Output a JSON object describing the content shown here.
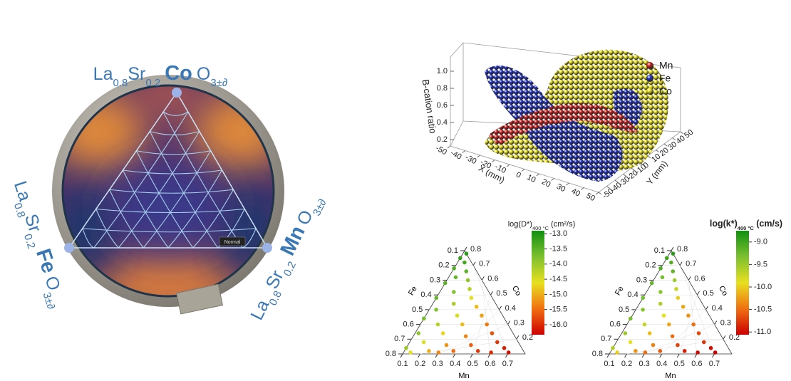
{
  "sample": {
    "compositions": [
      {
        "parts": [
          "La",
          "0.8",
          "Sr",
          "0.2",
          "Co",
          "O",
          "3±∂"
        ]
      },
      {
        "parts": [
          "La",
          "0.8",
          "Sr",
          "0.2",
          "Fe",
          "O",
          "3±∂"
        ]
      },
      {
        "parts": [
          "La",
          "0.8",
          "Sr",
          "0.2",
          "Mn",
          "O",
          "3±∂"
        ]
      }
    ],
    "tag": "Normal"
  },
  "chart_data": [
    {
      "type": "scatter3d",
      "zlabel": "B-cation ratio",
      "xlabel": "X (mm)",
      "ylabel": "Y (mm)",
      "xlim": [
        -50,
        50
      ],
      "ylim": [
        -50,
        50
      ],
      "zlim": [
        0,
        1.1
      ],
      "xticks": [
        -50,
        -40,
        -30,
        -20,
        -10,
        0,
        10,
        20,
        30,
        40,
        50
      ],
      "yticks": [
        -50,
        -40,
        -30,
        -20,
        -10,
        0,
        10,
        20,
        30,
        40,
        50
      ],
      "zticks": [
        0.2,
        0.4,
        0.6,
        0.8,
        {
          "value": 1,
          "label": "1.0"
        }
      ],
      "series": [
        {
          "name": "Mn",
          "color": "#d42020"
        },
        {
          "name": "Fe",
          "color": "#1f2fc0"
        },
        {
          "name": "Co",
          "color": "#e6e020"
        }
      ]
    },
    {
      "type": "ternary",
      "axis_labels": {
        "fe": "Fe",
        "co": "Co",
        "mn": "Mn"
      },
      "fe_ticks": [
        0.1,
        0.2,
        0.3,
        0.4,
        0.5,
        0.6,
        0.7,
        0.8
      ],
      "co_ticks": [
        0.2,
        0.3,
        0.4,
        0.5,
        0.6,
        0.7,
        0.8
      ],
      "mn_ticks": [
        0.1,
        0.2,
        0.3,
        0.4,
        0.5,
        0.6,
        0.7
      ],
      "colorbar": {
        "title": {
          "main": "log(D*)",
          "sub": "400 °C",
          "unit": " (cm²/s)"
        },
        "clim": [
          -16.33,
          -12.9
        ],
        "ticks": [
          {
            "value": -13,
            "label": "-13.0"
          },
          -13.5,
          {
            "value": -14,
            "label": "-14.0"
          },
          -14.5,
          {
            "value": -15,
            "label": "-15.0"
          },
          -15.5,
          {
            "value": -16,
            "label": "-16.0"
          }
        ],
        "colormap": [
          "#cc0000",
          "#f07010",
          "#e8e020",
          "#7cc030",
          "#109010"
        ]
      },
      "points": {
        "mn": [
          0.12,
          0.1,
          0.14,
          0.1,
          0.18,
          0.14,
          0.22,
          0.1,
          0.26,
          0.18,
          0.3,
          0.1,
          0.22,
          0.36,
          0.14,
          0.42,
          0.28,
          0.1,
          0.48,
          0.2,
          0.34,
          0.54,
          0.12,
          0.26,
          0.4,
          0.6,
          0.18,
          0.32,
          0.46,
          0.66,
          0.1,
          0.24,
          0.38,
          0.52,
          0.7,
          0.14,
          0.3,
          0.6
        ],
        "co": [
          0.78,
          0.75,
          0.72,
          0.68,
          0.66,
          0.62,
          0.6,
          0.58,
          0.54,
          0.52,
          0.48,
          0.48,
          0.44,
          0.42,
          0.4,
          0.36,
          0.36,
          0.34,
          0.3,
          0.3,
          0.3,
          0.24,
          0.24,
          0.24,
          0.22,
          0.18,
          0.18,
          0.16,
          0.16,
          0.14,
          0.14,
          0.12,
          0.12,
          0.12,
          0.11,
          0.11,
          0.11,
          0.11
        ],
        "values": [
          -13.1,
          -13.2,
          -13.3,
          -13.4,
          -13.5,
          -13.6,
          -13.9,
          -13.5,
          -14.2,
          -13.8,
          -14.6,
          -13.6,
          -14.1,
          -14.9,
          -13.8,
          -15.1,
          -14.5,
          -13.7,
          -15.4,
          -14.2,
          -14.9,
          -15.7,
          -13.9,
          -14.7,
          -15.3,
          -15.9,
          -14.5,
          -15.2,
          -15.6,
          -16.1,
          -14.0,
          -15.0,
          -15.5,
          -15.9,
          -16.2,
          -14.6,
          -15.3,
          -16.0
        ]
      }
    },
    {
      "type": "ternary",
      "axis_labels": {
        "fe": "Fe",
        "co": "Co",
        "mn": "Mn"
      },
      "fe_ticks": [
        0.1,
        0.2,
        0.3,
        0.4,
        0.5,
        0.6,
        0.7,
        0.8
      ],
      "co_ticks": [
        0.2,
        0.3,
        0.4,
        0.5,
        0.6,
        0.7,
        0.8
      ],
      "mn_ticks": [
        0.1,
        0.2,
        0.3,
        0.4,
        0.5,
        0.6,
        0.7
      ],
      "colorbar": {
        "title": {
          "main": "log(k*)",
          "sub": "400 °C",
          "unit": " (cm/s)"
        },
        "clim": [
          -11.06,
          -8.75
        ],
        "ticks": [
          {
            "value": -9,
            "label": "-9.0"
          },
          -9.5,
          {
            "value": -10,
            "label": "-10.0"
          },
          -10.5,
          {
            "value": -11,
            "label": "-11.0"
          }
        ],
        "colormap": [
          "#cc0000",
          "#f07010",
          "#e8e020",
          "#7cc030",
          "#109010"
        ]
      },
      "points": {
        "mn": [
          0.12,
          0.1,
          0.14,
          0.1,
          0.18,
          0.14,
          0.22,
          0.1,
          0.26,
          0.18,
          0.3,
          0.1,
          0.22,
          0.36,
          0.14,
          0.42,
          0.28,
          0.1,
          0.48,
          0.2,
          0.34,
          0.54,
          0.12,
          0.26,
          0.4,
          0.6,
          0.18,
          0.32,
          0.46,
          0.66,
          0.1,
          0.24,
          0.38,
          0.52,
          0.7,
          0.14,
          0.3,
          0.6
        ],
        "co": [
          0.78,
          0.75,
          0.72,
          0.68,
          0.66,
          0.62,
          0.6,
          0.58,
          0.54,
          0.52,
          0.48,
          0.48,
          0.44,
          0.42,
          0.4,
          0.36,
          0.36,
          0.34,
          0.3,
          0.3,
          0.3,
          0.24,
          0.24,
          0.24,
          0.22,
          0.18,
          0.18,
          0.16,
          0.16,
          0.14,
          0.14,
          0.12,
          0.12,
          0.12,
          0.11,
          0.11,
          0.11,
          0.11
        ],
        "values": [
          -8.9,
          -9.0,
          -9.1,
          -9.1,
          -9.2,
          -9.3,
          -9.5,
          -9.2,
          -9.7,
          -9.4,
          -10.0,
          -9.3,
          -9.6,
          -10.2,
          -9.4,
          -10.3,
          -9.9,
          -9.3,
          -10.5,
          -9.7,
          -10.2,
          -10.7,
          -9.5,
          -10.1,
          -10.5,
          -10.8,
          -9.9,
          -10.4,
          -10.7,
          -11.0,
          -9.6,
          -10.3,
          -10.6,
          -10.9,
          -11.1,
          -10.0,
          -10.5,
          -11.0
        ]
      }
    }
  ]
}
